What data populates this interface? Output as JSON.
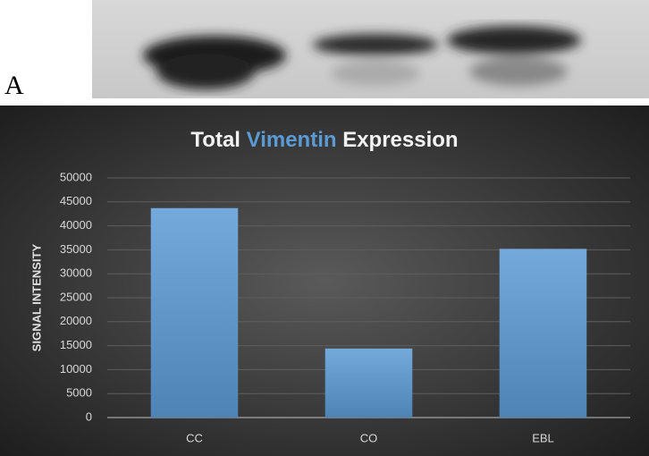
{
  "panel_label": "A",
  "chart_data": {
    "type": "bar",
    "title": "Total Vimentin Expression",
    "title_highlight_word": 1,
    "title_highlight_color": "#5b9bd5",
    "y_label": "SIGNAL INTENSITY",
    "categories": [
      "CC",
      "CO",
      "EBL"
    ],
    "values": [
      43700,
      14400,
      35200
    ],
    "color": "#5b9bd5",
    "ylim": [
      0,
      50000
    ],
    "yticks": [
      0,
      5000,
      10000,
      15000,
      20000,
      25000,
      30000,
      35000,
      40000,
      45000,
      50000
    ],
    "grid": true
  }
}
